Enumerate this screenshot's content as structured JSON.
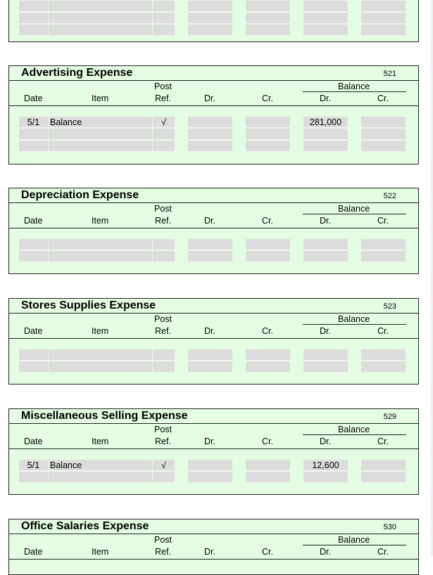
{
  "headers": {
    "post": "Post",
    "ref": "Ref.",
    "date": "Date",
    "item": "Item",
    "dr": "Dr.",
    "cr": "Cr.",
    "balance": "Balance",
    "bal_dr": "Dr.",
    "bal_cr": "Cr."
  },
  "accounts": [
    {
      "title": "Advertising Expense",
      "number": "521",
      "rows": [
        {
          "date": "5/1",
          "item": "Balance",
          "ref": "√",
          "dr": "",
          "cr": "",
          "bal_dr": "281,000",
          "bal_cr": ""
        },
        {
          "date": "",
          "item": "",
          "ref": "",
          "dr": "",
          "cr": "",
          "bal_dr": "",
          "bal_cr": ""
        },
        {
          "date": "",
          "item": "",
          "ref": "",
          "dr": "",
          "cr": "",
          "bal_dr": "",
          "bal_cr": ""
        }
      ]
    },
    {
      "title": "Depreciation Expense",
      "number": "522",
      "rows": [
        {
          "date": "",
          "item": "",
          "ref": "",
          "dr": "",
          "cr": "",
          "bal_dr": "",
          "bal_cr": ""
        },
        {
          "date": "",
          "item": "",
          "ref": "",
          "dr": "",
          "cr": "",
          "bal_dr": "",
          "bal_cr": ""
        }
      ]
    },
    {
      "title": "Stores Supplies Expense",
      "number": "523",
      "rows": [
        {
          "date": "",
          "item": "",
          "ref": "",
          "dr": "",
          "cr": "",
          "bal_dr": "",
          "bal_cr": ""
        },
        {
          "date": "",
          "item": "",
          "ref": "",
          "dr": "",
          "cr": "",
          "bal_dr": "",
          "bal_cr": ""
        }
      ]
    },
    {
      "title": "Miscellaneous Selling Expense",
      "number": "529",
      "rows": [
        {
          "date": "5/1",
          "item": "Balance",
          "ref": "√",
          "dr": "",
          "cr": "",
          "bal_dr": "12,600",
          "bal_cr": ""
        },
        {
          "date": "",
          "item": "",
          "ref": "",
          "dr": "",
          "cr": "",
          "bal_dr": "",
          "bal_cr": ""
        }
      ]
    },
    {
      "title": "Office Salaries Expense",
      "number": "530",
      "rows": []
    }
  ],
  "partial_top": {
    "rows": [
      {
        "date": "",
        "item": "",
        "ref": "",
        "dr": "",
        "cr": "",
        "bal_dr": "",
        "bal_cr": ""
      },
      {
        "date": "",
        "item": "",
        "ref": "",
        "dr": "",
        "cr": "",
        "bal_dr": "",
        "bal_cr": ""
      },
      {
        "date": "",
        "item": "",
        "ref": "",
        "dr": "",
        "cr": "",
        "bal_dr": "",
        "bal_cr": ""
      }
    ]
  }
}
